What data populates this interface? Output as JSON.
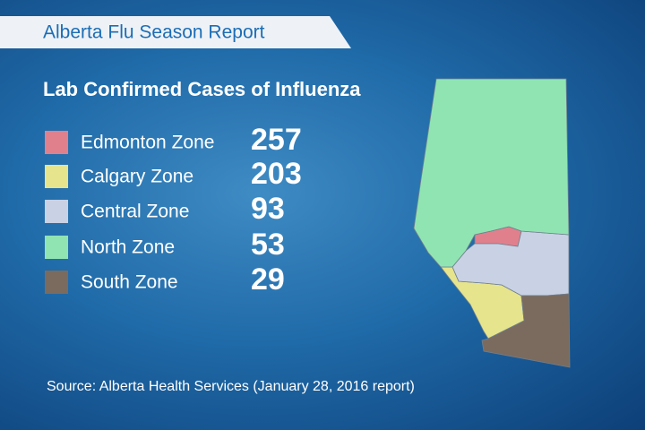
{
  "header": {
    "title": "Alberta Flu Season Report"
  },
  "subtitle": "Lab Confirmed Cases of Influenza",
  "zones": [
    {
      "name": "Edmonton Zone",
      "value": 257,
      "color": "#e1808d"
    },
    {
      "name": "Calgary Zone",
      "value": 203,
      "color": "#e6e48c"
    },
    {
      "name": "Central Zone",
      "value": 93,
      "color": "#c9d1e4"
    },
    {
      "name": "North Zone",
      "value": 53,
      "color": "#90e4b2"
    },
    {
      "name": "South Zone",
      "value": 29,
      "color": "#7b6b5e"
    }
  ],
  "source": "Source: Alberta Health Services (January 28, 2016 report)"
}
